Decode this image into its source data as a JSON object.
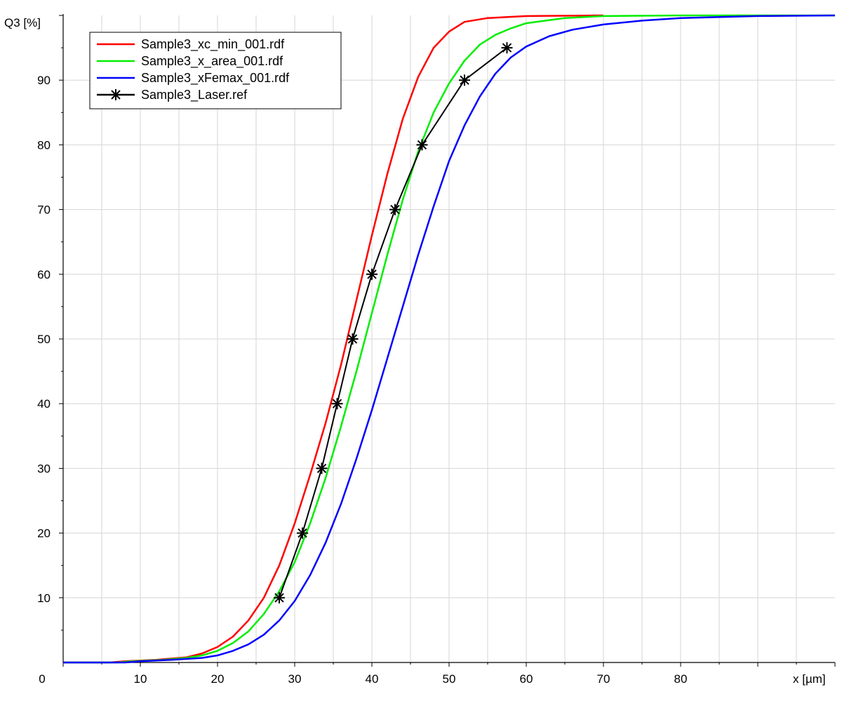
{
  "chart_data": {
    "type": "line",
    "title": "",
    "xlabel": "x [µm]",
    "ylabel": "Q3 [%]",
    "xlim": [
      0,
      100
    ],
    "ylim": [
      0,
      100
    ],
    "grid": true,
    "legend_position": "top-left",
    "x_tick_labels": [
      {
        "x": 0,
        "label": "0"
      },
      {
        "x": 10,
        "label": "10"
      },
      {
        "x": 20,
        "label": "20"
      },
      {
        "x": 30,
        "label": "30"
      },
      {
        "x": 40,
        "label": "40"
      },
      {
        "x": 50,
        "label": "50"
      },
      {
        "x": 60,
        "label": "60"
      },
      {
        "x": 70,
        "label": "70"
      },
      {
        "x": 80,
        "label": "80"
      }
    ],
    "y_tick_labels": [
      {
        "y": 10,
        "label": "10"
      },
      {
        "y": 20,
        "label": "20"
      },
      {
        "y": 30,
        "label": "30"
      },
      {
        "y": 40,
        "label": "40"
      },
      {
        "y": 50,
        "label": "50"
      },
      {
        "y": 60,
        "label": "60"
      },
      {
        "y": 70,
        "label": "70"
      },
      {
        "y": 80,
        "label": "80"
      },
      {
        "y": 90,
        "label": "90"
      }
    ],
    "series": [
      {
        "name": "Sample3_xc_min_001.rdf",
        "color": "#ff0000",
        "marker": "none",
        "points": [
          [
            0,
            0
          ],
          [
            6,
            0
          ],
          [
            8,
            0.2
          ],
          [
            12,
            0.4
          ],
          [
            16,
            0.8
          ],
          [
            18,
            1.4
          ],
          [
            20,
            2.4
          ],
          [
            22,
            4
          ],
          [
            24,
            6.5
          ],
          [
            26,
            10
          ],
          [
            28,
            15
          ],
          [
            30,
            21.5
          ],
          [
            32,
            29
          ],
          [
            34,
            37
          ],
          [
            36,
            46
          ],
          [
            38,
            56
          ],
          [
            40,
            66
          ],
          [
            42,
            75.5
          ],
          [
            44,
            84
          ],
          [
            46,
            90.5
          ],
          [
            48,
            95
          ],
          [
            50,
            97.5
          ],
          [
            52,
            99
          ],
          [
            55,
            99.6
          ],
          [
            60,
            99.9
          ],
          [
            70,
            100
          ]
        ]
      },
      {
        "name": "Sample3_x_area_001.rdf",
        "color": "#00ee00",
        "marker": "none",
        "points": [
          [
            0,
            0
          ],
          [
            7,
            0
          ],
          [
            9,
            0.2
          ],
          [
            13,
            0.4
          ],
          [
            16,
            0.7
          ],
          [
            18,
            1.1
          ],
          [
            20,
            1.8
          ],
          [
            22,
            3
          ],
          [
            24,
            4.8
          ],
          [
            26,
            7.5
          ],
          [
            28,
            11
          ],
          [
            30,
            15.5
          ],
          [
            32,
            21.5
          ],
          [
            34,
            28.5
          ],
          [
            36,
            36.5
          ],
          [
            38,
            45
          ],
          [
            40,
            54
          ],
          [
            42,
            63
          ],
          [
            44,
            71.5
          ],
          [
            46,
            79
          ],
          [
            48,
            85
          ],
          [
            50,
            89.5
          ],
          [
            52,
            93
          ],
          [
            54,
            95.5
          ],
          [
            56,
            97
          ],
          [
            58,
            98
          ],
          [
            60,
            98.8
          ],
          [
            65,
            99.6
          ],
          [
            70,
            99.9
          ],
          [
            80,
            100
          ],
          [
            100,
            100
          ]
        ]
      },
      {
        "name": "Sample3_xFemax_001.rdf",
        "color": "#0000ff",
        "marker": "none",
        "points": [
          [
            0,
            0
          ],
          [
            8,
            0
          ],
          [
            10,
            0.2
          ],
          [
            14,
            0.4
          ],
          [
            18,
            0.7
          ],
          [
            20,
            1.1
          ],
          [
            22,
            1.8
          ],
          [
            24,
            2.8
          ],
          [
            26,
            4.3
          ],
          [
            28,
            6.5
          ],
          [
            30,
            9.5
          ],
          [
            32,
            13.5
          ],
          [
            34,
            18.5
          ],
          [
            36,
            24.5
          ],
          [
            38,
            31.5
          ],
          [
            40,
            39
          ],
          [
            42,
            47
          ],
          [
            44,
            55
          ],
          [
            46,
            63
          ],
          [
            48,
            70.5
          ],
          [
            50,
            77.5
          ],
          [
            52,
            83
          ],
          [
            54,
            87.5
          ],
          [
            56,
            91
          ],
          [
            58,
            93.5
          ],
          [
            60,
            95.2
          ],
          [
            63,
            96.8
          ],
          [
            66,
            97.8
          ],
          [
            70,
            98.6
          ],
          [
            75,
            99.2
          ],
          [
            80,
            99.6
          ],
          [
            90,
            99.9
          ],
          [
            100,
            100
          ]
        ]
      },
      {
        "name": "Sample3_Laser.ref",
        "color": "#000000",
        "marker": "asterisk",
        "points": [
          [
            28,
            10
          ],
          [
            31,
            20
          ],
          [
            33.5,
            30
          ],
          [
            35.5,
            40
          ],
          [
            37.5,
            50
          ],
          [
            40,
            60
          ],
          [
            43,
            70
          ],
          [
            46.5,
            80
          ],
          [
            52,
            90
          ],
          [
            57.5,
            95
          ]
        ]
      }
    ]
  }
}
